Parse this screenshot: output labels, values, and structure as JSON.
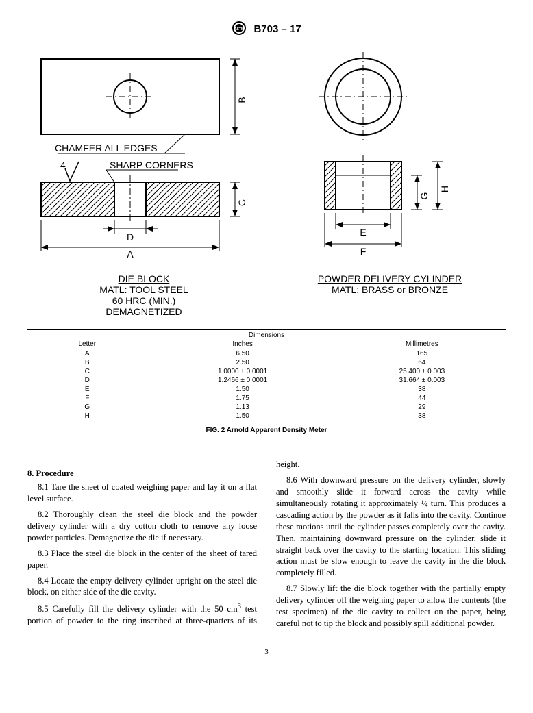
{
  "header": {
    "designation": "B703 – 17"
  },
  "diagram": {
    "die_block": {
      "title": "DIE BLOCK",
      "mat1": "MATL: TOOL STEEL",
      "mat2": "60 HRC (MIN.)",
      "mat3": "DEMAGNETIZED",
      "chamfer_note": "CHAMFER ALL EDGES",
      "sharp_note": "SHARP CORNERS",
      "surface_symbol": "4",
      "dim_A": "A",
      "dim_B": "B",
      "dim_C": "C",
      "dim_D": "D"
    },
    "cylinder": {
      "title": "POWDER DELIVERY CYLINDER",
      "mat1": "MATL: BRASS or BRONZE",
      "dim_E": "E",
      "dim_F": "F",
      "dim_G": "G",
      "dim_H": "H"
    }
  },
  "table": {
    "caption_top": "Dimensions",
    "headers": {
      "letter": "Letter",
      "inches": "Inches",
      "mm": "Millimetres"
    },
    "rows": [
      {
        "l": "A",
        "in": "6.50",
        "mm": "165"
      },
      {
        "l": "B",
        "in": "2.50",
        "mm": "64"
      },
      {
        "l": "C",
        "in": "1.0000 ± 0.0001",
        "mm": "25.400 ± 0.003"
      },
      {
        "l": "D",
        "in": "1.2466 ± 0.0001",
        "mm": "31.664 ± 0.003"
      },
      {
        "l": "E",
        "in": "1.50",
        "mm": "38"
      },
      {
        "l": "F",
        "in": "1.75",
        "mm": "44"
      },
      {
        "l": "G",
        "in": "1.13",
        "mm": "29"
      },
      {
        "l": "H",
        "in": "1.50",
        "mm": "38"
      }
    ],
    "fig_caption": "FIG. 2 Arnold Apparent Density Meter"
  },
  "section": {
    "head": "8. Procedure",
    "p1": "8.1 Tare the sheet of coated weighing paper and lay it on a flat level surface.",
    "p2": "8.2 Thoroughly clean the steel die block and the powder delivery cylinder with a dry cotton cloth to remove any loose powder particles. Demagnetize the die if necessary.",
    "p3": "8.3 Place the steel die block in the center of the sheet of tared paper.",
    "p4": "8.4 Locate the empty delivery cylinder upright on the steel die block, on either side of the die cavity.",
    "p5a": "8.5 Carefully fill the delivery cylinder with the 50 cm",
    "p5b": " test portion of powder to the ring inscribed at three-quarters of its height.",
    "p6a": "8.6 With downward pressure on the delivery cylinder, slowly and smoothly slide it forward across the cavity while simultaneously rotating it approximately ",
    "p6b": " turn. This produces a cascading action by the powder as it falls into the cavity. Continue these motions until the cylinder passes completely over the cavity. Then, maintaining downward pressure on the cylinder, slide it straight back over the cavity to the starting location. This sliding action must be slow enough to leave the cavity in the die block completely filled.",
    "p7": "8.7 Slowly lift the die block together with the partially empty delivery cylinder off the weighing paper to allow the contents (the test specimen) of the die cavity to collect on the paper, being careful not to tip the block and possibly spill additional powder."
  },
  "page_number": "3"
}
